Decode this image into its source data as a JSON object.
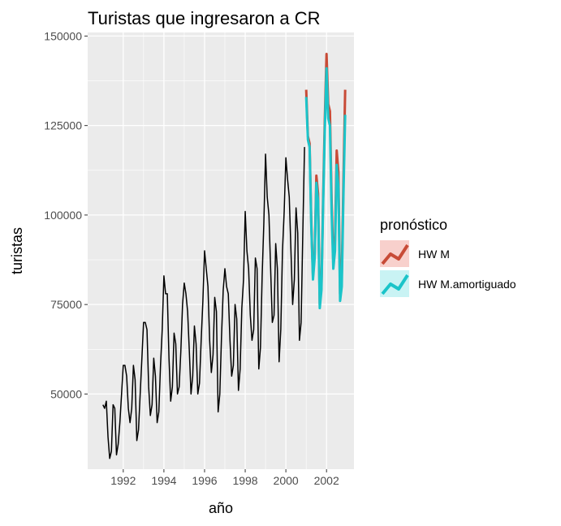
{
  "chart_data": {
    "type": "line",
    "title": "Turistas que ingresaron a CR",
    "xlabel": "año",
    "ylabel": "turistas",
    "xlim": [
      1990.25,
      2003.35
    ],
    "ylim": [
      29000,
      151000
    ],
    "x_ticks": [
      1992,
      1994,
      1996,
      1998,
      2000,
      2002
    ],
    "x_tick_labels": [
      "1992",
      "1994",
      "1996",
      "1998",
      "2000",
      "2002"
    ],
    "y_ticks": [
      50000,
      75000,
      100000,
      125000,
      150000
    ],
    "y_tick_labels": [
      "50000",
      "75000",
      "100000",
      "125000",
      "150000"
    ],
    "grid": true,
    "legend": {
      "title": "pronóstico",
      "position": "right",
      "entries": [
        {
          "label": "HW M",
          "color": "#C84B37",
          "fill": "#F8D0CC"
        },
        {
          "label": "HW M.amortiguado",
          "color": "#1BC4C9",
          "fill": "#C9F3F4"
        }
      ]
    },
    "series": [
      {
        "role": "observed",
        "color": "#000000",
        "x": [
          1991.0,
          1991.083,
          1991.167,
          1991.25,
          1991.333,
          1991.417,
          1991.5,
          1991.583,
          1991.667,
          1991.75,
          1991.833,
          1991.917,
          1992.0,
          1992.083,
          1992.167,
          1992.25,
          1992.333,
          1992.417,
          1992.5,
          1992.583,
          1992.667,
          1992.75,
          1992.833,
          1992.917,
          1993.0,
          1993.083,
          1993.167,
          1993.25,
          1993.333,
          1993.417,
          1993.5,
          1993.583,
          1993.667,
          1993.75,
          1993.833,
          1993.917,
          1994.0,
          1994.083,
          1994.167,
          1994.25,
          1994.333,
          1994.417,
          1994.5,
          1994.583,
          1994.667,
          1994.75,
          1994.833,
          1994.917,
          1995.0,
          1995.083,
          1995.167,
          1995.25,
          1995.333,
          1995.417,
          1995.5,
          1995.583,
          1995.667,
          1995.75,
          1995.833,
          1995.917,
          1996.0,
          1996.083,
          1996.167,
          1996.25,
          1996.333,
          1996.417,
          1996.5,
          1996.583,
          1996.667,
          1996.75,
          1996.833,
          1996.917,
          1997.0,
          1997.083,
          1997.167,
          1997.25,
          1997.333,
          1997.417,
          1997.5,
          1997.583,
          1997.667,
          1997.75,
          1997.833,
          1997.917,
          1998.0,
          1998.083,
          1998.167,
          1998.25,
          1998.333,
          1998.417,
          1998.5,
          1998.583,
          1998.667,
          1998.75,
          1998.833,
          1998.917,
          1999.0,
          1999.083,
          1999.167,
          1999.25,
          1999.333,
          1999.417,
          1999.5,
          1999.583,
          1999.667,
          1999.75,
          1999.833,
          1999.917,
          2000.0,
          2000.083,
          2000.167,
          2000.25,
          2000.333,
          2000.417,
          2000.5,
          2000.583,
          2000.667,
          2000.75,
          2000.833,
          2000.917
        ],
        "y": [
          47000,
          46000,
          48000,
          38000,
          32000,
          34000,
          47000,
          46000,
          33000,
          36000,
          42000,
          50000,
          58000,
          58000,
          55000,
          46000,
          42000,
          46000,
          58000,
          54000,
          37000,
          40000,
          50000,
          60000,
          70000,
          70000,
          68000,
          52000,
          44000,
          47000,
          60000,
          55000,
          42000,
          45000,
          58000,
          68000,
          83000,
          78000,
          78000,
          60000,
          48000,
          52000,
          67000,
          64000,
          50000,
          52000,
          62000,
          75000,
          81000,
          78000,
          73000,
          62000,
          50000,
          55000,
          69000,
          64000,
          50000,
          53000,
          65000,
          76000,
          90000,
          85000,
          80000,
          65000,
          56000,
          61000,
          77000,
          73000,
          45000,
          50000,
          66000,
          79000,
          85000,
          80000,
          78000,
          65000,
          55000,
          58000,
          75000,
          71000,
          51000,
          57000,
          74000,
          82000,
          101000,
          90000,
          85000,
          72000,
          65000,
          68000,
          88000,
          85000,
          57000,
          63000,
          83000,
          98000,
          117000,
          105000,
          100000,
          85000,
          70000,
          72000,
          92000,
          85000,
          59000,
          68000,
          90000,
          101000,
          116000,
          110000,
          105000,
          90000,
          75000,
          82000,
          102000,
          95000,
          65000,
          70000,
          95000,
          119000
        ]
      },
      {
        "name": "HW M",
        "color": "#C84B37",
        "x": [
          2001.0,
          2001.083,
          2001.167,
          2001.25,
          2001.333,
          2001.417,
          2001.5,
          2001.583,
          2001.667,
          2001.75,
          2001.833,
          2001.917,
          2002.0,
          2002.083,
          2002.167,
          2002.25,
          2002.333,
          2002.417,
          2002.5,
          2002.583,
          2002.667,
          2002.75,
          2002.833,
          2002.917
        ],
        "y": [
          135000,
          122000,
          120000,
          98000,
          83000,
          89000,
          111000,
          106000,
          75000,
          80000,
          105000,
          127000,
          145000,
          131000,
          129000,
          104000,
          87000,
          93000,
          118000,
          112000,
          78000,
          83000,
          110000,
          135000
        ]
      },
      {
        "name": "HW M.amortiguado",
        "color": "#1BC4C9",
        "x": [
          2001.0,
          2001.083,
          2001.167,
          2001.25,
          2001.333,
          2001.417,
          2001.5,
          2001.583,
          2001.667,
          2001.75,
          2001.833,
          2001.917,
          2002.0,
          2002.083,
          2002.167,
          2002.25,
          2002.333,
          2002.417,
          2002.5,
          2002.583,
          2002.667,
          2002.75,
          2002.833,
          2002.917
        ],
        "y": [
          133000,
          121000,
          119000,
          97000,
          82000,
          88000,
          109000,
          104000,
          74000,
          79000,
          103000,
          124000,
          141000,
          127000,
          125000,
          101000,
          85000,
          90000,
          114000,
          108000,
          76000,
          80000,
          106000,
          128000
        ]
      }
    ]
  }
}
